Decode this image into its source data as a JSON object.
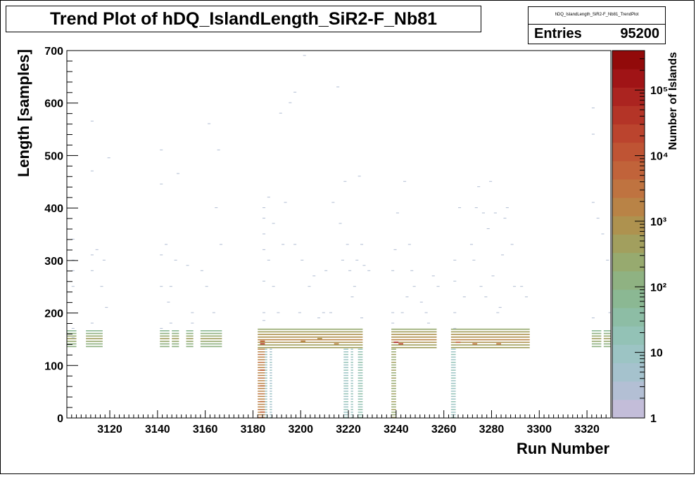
{
  "chart_data": {
    "type": "heatmap",
    "title": "Trend Plot of hDQ_IslandLength_SiR2-F_Nb81",
    "xlabel": "Run Number",
    "ylabel": "Length [samples]",
    "zlabel": "Number of Islands",
    "xlim": [
      3102,
      3330
    ],
    "ylim": [
      0,
      700
    ],
    "z_scale": "log",
    "zlim": [
      1,
      400000
    ],
    "x_ticks": [
      3120,
      3140,
      3160,
      3180,
      3200,
      3220,
      3240,
      3260,
      3280,
      3300,
      3320
    ],
    "y_ticks": [
      0,
      100,
      200,
      300,
      400,
      500,
      600,
      700
    ],
    "z_ticks": [
      "1",
      "10",
      "10²",
      "10³",
      "10⁴",
      "10⁵"
    ],
    "grid": false,
    "stats": {
      "name": "hDQ_IslandLength_SiR2-F_Nb81_TrendPlot",
      "entries_label": "Entries",
      "entries": "95200"
    },
    "palette": [
      "#c3bdd9",
      "#b3bfd4",
      "#a5c2cd",
      "#9cc4c4",
      "#93c2b6",
      "#8dbda5",
      "#8bb893",
      "#8fb282",
      "#97aa6f",
      "#a29f5e",
      "#ae924f",
      "#b98346",
      "#bf7340",
      "#c1633a",
      "#bf5434",
      "#bb442e",
      "#b43427",
      "#ab2420",
      "#a01416",
      "#920a0a"
    ],
    "run_blocks": [
      {
        "x": [
          3102,
          3106
        ],
        "y": [
          135,
          170
        ],
        "level": 7
      },
      {
        "x": [
          3110,
          3117
        ],
        "y": [
          135,
          170
        ],
        "level": 7
      },
      {
        "x": [
          3141,
          3145
        ],
        "y": [
          135,
          170
        ],
        "level": 7
      },
      {
        "x": [
          3146,
          3149
        ],
        "y": [
          135,
          170
        ],
        "level": 7
      },
      {
        "x": [
          3152,
          3155
        ],
        "y": [
          135,
          170
        ],
        "level": 7
      },
      {
        "x": [
          3158,
          3167
        ],
        "y": [
          135,
          170
        ],
        "level": 7
      },
      {
        "x": [
          3182,
          3226
        ],
        "y": [
          133,
          172
        ],
        "level": 9
      },
      {
        "x": [
          3238,
          3257
        ],
        "y": [
          133,
          172
        ],
        "level": 9
      },
      {
        "x": [
          3263,
          3296
        ],
        "y": [
          133,
          172
        ],
        "level": 9
      },
      {
        "x": [
          3322,
          3326
        ],
        "y": [
          135,
          170
        ],
        "level": 7
      },
      {
        "x": [
          3327,
          3330
        ],
        "y": [
          135,
          170
        ],
        "level": 7
      }
    ],
    "low_length_columns": [
      {
        "x": [
          3182,
          3185
        ],
        "y": [
          0,
          135
        ],
        "level": 11
      },
      {
        "x": [
          3185,
          3186
        ],
        "y": [
          0,
          135
        ],
        "level": 3
      },
      {
        "x": [
          3187,
          3188
        ],
        "y": [
          0,
          135
        ],
        "level": 2
      },
      {
        "x": [
          3218,
          3220
        ],
        "y": [
          0,
          135
        ],
        "level": 3
      },
      {
        "x": [
          3221,
          3222
        ],
        "y": [
          0,
          135
        ],
        "level": 3
      },
      {
        "x": [
          3224,
          3226
        ],
        "y": [
          0,
          135
        ],
        "level": 4
      },
      {
        "x": [
          3238,
          3240
        ],
        "y": [
          0,
          135
        ],
        "level": 8
      },
      {
        "x": [
          3263,
          3265
        ],
        "y": [
          0,
          135
        ],
        "level": 3
      }
    ],
    "hot_spots": [
      {
        "x": 3184,
        "y": 140,
        "level": 16
      },
      {
        "x": 3184,
        "y": 145,
        "level": 13
      },
      {
        "x": 3240,
        "y": 143,
        "level": 17
      },
      {
        "x": 3242,
        "y": 140,
        "level": 15
      },
      {
        "x": 3266,
        "y": 143,
        "level": 13
      },
      {
        "x": 3273,
        "y": 140,
        "level": 12
      },
      {
        "x": 3283,
        "y": 140,
        "level": 12
      },
      {
        "x": 3201,
        "y": 145,
        "level": 11
      },
      {
        "x": 3215,
        "y": 140,
        "level": 11
      },
      {
        "x": 3208,
        "y": 150,
        "level": 10
      },
      {
        "x": 3184,
        "y": 90,
        "level": 13
      },
      {
        "x": 3184,
        "y": 60,
        "level": 12
      },
      {
        "x": 3184,
        "y": 30,
        "level": 12
      },
      {
        "x": 3184,
        "y": 10,
        "level": 13
      }
    ],
    "scattered_islands": [
      [
        3104,
        152
      ],
      [
        3104,
        170
      ],
      [
        3104,
        250
      ],
      [
        3104,
        280
      ],
      [
        3104,
        300
      ],
      [
        3104,
        340
      ],
      [
        3112,
        180
      ],
      [
        3112,
        280
      ],
      [
        3112,
        310
      ],
      [
        3112,
        470
      ],
      [
        3112,
        565
      ],
      [
        3114,
        320
      ],
      [
        3116,
        250
      ],
      [
        3117,
        300
      ],
      [
        3118,
        210
      ],
      [
        3119,
        495
      ],
      [
        3141,
        170
      ],
      [
        3141,
        250
      ],
      [
        3141,
        310
      ],
      [
        3141,
        445
      ],
      [
        3141,
        510
      ],
      [
        3143,
        330
      ],
      [
        3144,
        220
      ],
      [
        3145,
        180
      ],
      [
        3145,
        250
      ],
      [
        3147,
        300
      ],
      [
        3148,
        465
      ],
      [
        3152,
        290
      ],
      [
        3154,
        180
      ],
      [
        3154,
        200
      ],
      [
        3158,
        280
      ],
      [
        3160,
        250
      ],
      [
        3161,
        560
      ],
      [
        3163,
        200
      ],
      [
        3164,
        400
      ],
      [
        3165,
        510
      ],
      [
        3166,
        330
      ],
      [
        3184,
        185
      ],
      [
        3184,
        200
      ],
      [
        3184,
        260
      ],
      [
        3184,
        320
      ],
      [
        3184,
        350
      ],
      [
        3184,
        380
      ],
      [
        3184,
        400
      ],
      [
        3186,
        300
      ],
      [
        3186,
        420
      ],
      [
        3188,
        250
      ],
      [
        3188,
        370
      ],
      [
        3190,
        200
      ],
      [
        3191,
        580
      ],
      [
        3192,
        330
      ],
      [
        3193,
        410
      ],
      [
        3195,
        600
      ],
      [
        3197,
        620
      ],
      [
        3197,
        330
      ],
      [
        3199,
        200
      ],
      [
        3200,
        300
      ],
      [
        3201,
        690
      ],
      [
        3203,
        250
      ],
      [
        3205,
        270
      ],
      [
        3207,
        190
      ],
      [
        3209,
        200
      ],
      [
        3210,
        280
      ],
      [
        3212,
        200
      ],
      [
        3213,
        410
      ],
      [
        3215,
        630
      ],
      [
        3216,
        370
      ],
      [
        3217,
        300
      ],
      [
        3218,
        450
      ],
      [
        3219,
        330
      ],
      [
        3220,
        280
      ],
      [
        3221,
        230
      ],
      [
        3222,
        250
      ],
      [
        3223,
        300
      ],
      [
        3224,
        460
      ],
      [
        3225,
        330
      ],
      [
        3225,
        190
      ],
      [
        3226,
        290
      ],
      [
        3228,
        280
      ],
      [
        3238,
        180
      ],
      [
        3238,
        200
      ],
      [
        3238,
        280
      ],
      [
        3239,
        320
      ],
      [
        3240,
        390
      ],
      [
        3242,
        200
      ],
      [
        3243,
        450
      ],
      [
        3244,
        230
      ],
      [
        3245,
        330
      ],
      [
        3246,
        280
      ],
      [
        3247,
        250
      ],
      [
        3250,
        220
      ],
      [
        3252,
        200
      ],
      [
        3253,
        180
      ],
      [
        3255,
        270
      ],
      [
        3257,
        250
      ],
      [
        3264,
        170
      ],
      [
        3264,
        200
      ],
      [
        3264,
        260
      ],
      [
        3264,
        300
      ],
      [
        3266,
        400
      ],
      [
        3268,
        230
      ],
      [
        3271,
        330
      ],
      [
        3272,
        300
      ],
      [
        3273,
        400
      ],
      [
        3274,
        440
      ],
      [
        3275,
        250
      ],
      [
        3276,
        390
      ],
      [
        3277,
        230
      ],
      [
        3278,
        360
      ],
      [
        3279,
        450
      ],
      [
        3280,
        270
      ],
      [
        3281,
        390
      ],
      [
        3282,
        200
      ],
      [
        3283,
        210
      ],
      [
        3284,
        310
      ],
      [
        3285,
        380
      ],
      [
        3286,
        400
      ],
      [
        3288,
        330
      ],
      [
        3289,
        250
      ],
      [
        3292,
        250
      ],
      [
        3294,
        230
      ],
      [
        3322,
        190
      ],
      [
        3322,
        410
      ],
      [
        3322,
        540
      ],
      [
        3322,
        590
      ],
      [
        3324,
        380
      ],
      [
        3326,
        350
      ],
      [
        3328,
        300
      ],
      [
        3329,
        200
      ]
    ]
  }
}
